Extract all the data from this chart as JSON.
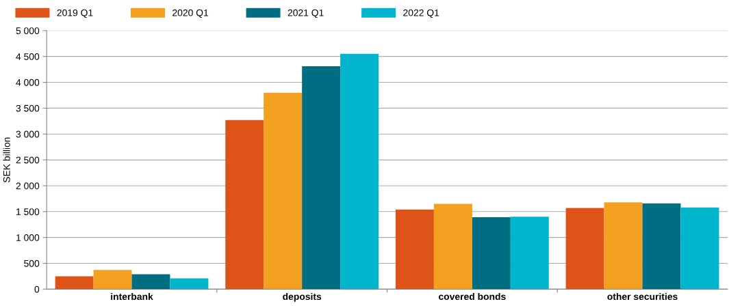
{
  "chart_data": {
    "type": "bar",
    "ylabel": "SEK billion",
    "categories": [
      "interbank",
      "deposits",
      "covered bonds",
      "other securities"
    ],
    "series": [
      {
        "name": "2019 Q1",
        "color": "#dd5318",
        "values": [
          250,
          3270,
          1540,
          1570
        ]
      },
      {
        "name": "2020 Q1",
        "color": "#f4a020",
        "values": [
          370,
          3800,
          1650,
          1680
        ]
      },
      {
        "name": "2021 Q1",
        "color": "#006e82",
        "values": [
          290,
          4310,
          1390,
          1660
        ]
      },
      {
        "name": "2022 Q1",
        "color": "#00b5cc",
        "values": [
          210,
          4550,
          1400,
          1580
        ]
      }
    ],
    "ylim": [
      0,
      5000
    ],
    "yticks": [
      0,
      {
        "value": 500,
        "label": "500"
      },
      {
        "value": 1000,
        "label": "1 000"
      },
      {
        "value": 1500,
        "label": "1 500"
      },
      {
        "value": 2000,
        "label": "2 000"
      },
      {
        "value": 2500,
        "label": "2 500"
      },
      {
        "value": 3000,
        "label": "3 000"
      },
      {
        "value": 3500,
        "label": "3 500"
      },
      {
        "value": 4000,
        "label": "4 000"
      },
      {
        "value": 4500,
        "label": "4 500"
      },
      {
        "value": 5000,
        "label": "5 000"
      }
    ],
    "grid": "y",
    "legend": "top left"
  }
}
